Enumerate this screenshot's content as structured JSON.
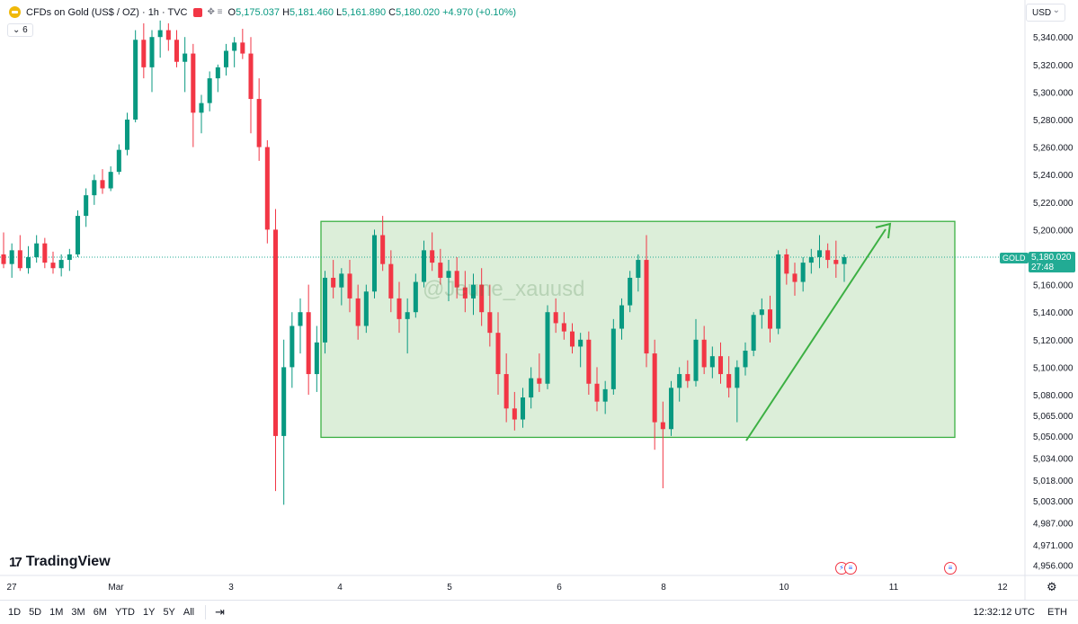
{
  "header": {
    "symbol": "CFDs on Gold (US$ / OZ) · 1h · TVC",
    "open_label": "O",
    "open": "5,175.037",
    "high_label": "H",
    "high": "5,181.460",
    "low_label": "L",
    "low": "5,161.890",
    "close_label": "C",
    "close": "5,180.020",
    "change": "+4.970 (+0.10%)",
    "indicator_count": "6"
  },
  "currency": "USD",
  "price_tag": {
    "symbol": "GOLD",
    "price": "5,180.020",
    "countdown": "27:48"
  },
  "watermark": "@Jeune_xauusd",
  "logo_text": "TradingView",
  "range_buttons": [
    "1D",
    "5D",
    "1M",
    "3M",
    "6M",
    "YTD",
    "1Y",
    "5Y",
    "All"
  ],
  "status": {
    "time": "12:32:12 UTC",
    "session": "ETH"
  },
  "colors": {
    "up": "#089981",
    "down": "#f23645",
    "zone_fill": "#d6ebd2",
    "zone_stroke": "#3cb043",
    "arrow": "#3cb043"
  },
  "chart_data": {
    "type": "candlestick",
    "symbol": "GOLD",
    "timeframe": "1h",
    "y_ticks": [
      5340,
      5320,
      5300,
      5280,
      5260,
      5240,
      5220,
      5200,
      5180,
      5160,
      5140,
      5120,
      5100,
      5080,
      5065,
      5050,
      5034,
      5018,
      5003,
      4987,
      4971,
      4956
    ],
    "y_tick_labels": [
      "5,340.000",
      "5,320.000",
      "5,300.000",
      "5,280.000",
      "5,260.000",
      "5,240.000",
      "5,220.000",
      "5,200.000",
      "5,180.000",
      "5,160.000",
      "5,140.000",
      "5,120.000",
      "5,100.000",
      "5,080.000",
      "5,065.000",
      "5,050.000",
      "5,034.000",
      "5,018.000",
      "5,003.000",
      "4,987.000",
      "4,971.000",
      "4,956.000"
    ],
    "x_ticks": [
      "27",
      "Mar",
      "3",
      "4",
      "5",
      "6",
      "8",
      "10",
      "11",
      "12"
    ],
    "current_price": 5180.02,
    "zone": {
      "top": 5206,
      "bottom": 5049,
      "label": ""
    },
    "candles": [
      {
        "o": 5182,
        "h": 5198,
        "l": 5172,
        "c": 5175
      },
      {
        "o": 5175,
        "h": 5190,
        "l": 5165,
        "c": 5185
      },
      {
        "o": 5185,
        "h": 5196,
        "l": 5170,
        "c": 5172
      },
      {
        "o": 5172,
        "h": 5188,
        "l": 5168,
        "c": 5180
      },
      {
        "o": 5180,
        "h": 5196,
        "l": 5176,
        "c": 5190
      },
      {
        "o": 5190,
        "h": 5194,
        "l": 5172,
        "c": 5176
      },
      {
        "o": 5176,
        "h": 5184,
        "l": 5168,
        "c": 5172
      },
      {
        "o": 5172,
        "h": 5182,
        "l": 5166,
        "c": 5178
      },
      {
        "o": 5178,
        "h": 5186,
        "l": 5170,
        "c": 5182
      },
      {
        "o": 5182,
        "h": 5214,
        "l": 5180,
        "c": 5210
      },
      {
        "o": 5210,
        "h": 5230,
        "l": 5202,
        "c": 5225
      },
      {
        "o": 5225,
        "h": 5240,
        "l": 5218,
        "c": 5236
      },
      {
        "o": 5236,
        "h": 5244,
        "l": 5226,
        "c": 5230
      },
      {
        "o": 5230,
        "h": 5246,
        "l": 5228,
        "c": 5242
      },
      {
        "o": 5242,
        "h": 5262,
        "l": 5240,
        "c": 5258
      },
      {
        "o": 5258,
        "h": 5285,
        "l": 5254,
        "c": 5280
      },
      {
        "o": 5280,
        "h": 5345,
        "l": 5278,
        "c": 5338
      },
      {
        "o": 5338,
        "h": 5350,
        "l": 5310,
        "c": 5318
      },
      {
        "o": 5318,
        "h": 5345,
        "l": 5300,
        "c": 5340
      },
      {
        "o": 5340,
        "h": 5352,
        "l": 5325,
        "c": 5345
      },
      {
        "o": 5345,
        "h": 5350,
        "l": 5330,
        "c": 5338
      },
      {
        "o": 5338,
        "h": 5345,
        "l": 5318,
        "c": 5322
      },
      {
        "o": 5322,
        "h": 5340,
        "l": 5300,
        "c": 5328
      },
      {
        "o": 5328,
        "h": 5335,
        "l": 5260,
        "c": 5285
      },
      {
        "o": 5285,
        "h": 5298,
        "l": 5270,
        "c": 5292
      },
      {
        "o": 5292,
        "h": 5315,
        "l": 5286,
        "c": 5310
      },
      {
        "o": 5310,
        "h": 5320,
        "l": 5300,
        "c": 5318
      },
      {
        "o": 5318,
        "h": 5335,
        "l": 5312,
        "c": 5330
      },
      {
        "o": 5330,
        "h": 5340,
        "l": 5318,
        "c": 5336
      },
      {
        "o": 5336,
        "h": 5346,
        "l": 5324,
        "c": 5328
      },
      {
        "o": 5328,
        "h": 5340,
        "l": 5270,
        "c": 5295
      },
      {
        "o": 5295,
        "h": 5310,
        "l": 5250,
        "c": 5260
      },
      {
        "o": 5260,
        "h": 5265,
        "l": 5190,
        "c": 5200
      },
      {
        "o": 5200,
        "h": 5215,
        "l": 5010,
        "c": 5050
      },
      {
        "o": 5050,
        "h": 5120,
        "l": 5000,
        "c": 5100
      },
      {
        "o": 5100,
        "h": 5140,
        "l": 5085,
        "c": 5130
      },
      {
        "o": 5130,
        "h": 5150,
        "l": 5110,
        "c": 5140
      },
      {
        "o": 5140,
        "h": 5160,
        "l": 5080,
        "c": 5095
      },
      {
        "o": 5095,
        "h": 5130,
        "l": 5082,
        "c": 5118
      },
      {
        "o": 5118,
        "h": 5170,
        "l": 5110,
        "c": 5165
      },
      {
        "o": 5165,
        "h": 5178,
        "l": 5150,
        "c": 5158
      },
      {
        "o": 5158,
        "h": 5172,
        "l": 5145,
        "c": 5168
      },
      {
        "o": 5168,
        "h": 5178,
        "l": 5140,
        "c": 5150
      },
      {
        "o": 5150,
        "h": 5160,
        "l": 5120,
        "c": 5130
      },
      {
        "o": 5130,
        "h": 5160,
        "l": 5125,
        "c": 5155
      },
      {
        "o": 5155,
        "h": 5200,
        "l": 5150,
        "c": 5196
      },
      {
        "o": 5196,
        "h": 5210,
        "l": 5170,
        "c": 5175
      },
      {
        "o": 5175,
        "h": 5185,
        "l": 5140,
        "c": 5150
      },
      {
        "o": 5150,
        "h": 5162,
        "l": 5125,
        "c": 5135
      },
      {
        "o": 5135,
        "h": 5150,
        "l": 5110,
        "c": 5140
      },
      {
        "o": 5140,
        "h": 5168,
        "l": 5136,
        "c": 5162
      },
      {
        "o": 5162,
        "h": 5192,
        "l": 5158,
        "c": 5185
      },
      {
        "o": 5185,
        "h": 5198,
        "l": 5170,
        "c": 5176
      },
      {
        "o": 5176,
        "h": 5186,
        "l": 5160,
        "c": 5165
      },
      {
        "o": 5165,
        "h": 5178,
        "l": 5148,
        "c": 5170
      },
      {
        "o": 5170,
        "h": 5180,
        "l": 5150,
        "c": 5158
      },
      {
        "o": 5158,
        "h": 5170,
        "l": 5140,
        "c": 5150
      },
      {
        "o": 5150,
        "h": 5168,
        "l": 5138,
        "c": 5160
      },
      {
        "o": 5160,
        "h": 5172,
        "l": 5130,
        "c": 5140
      },
      {
        "o": 5140,
        "h": 5160,
        "l": 5115,
        "c": 5125
      },
      {
        "o": 5125,
        "h": 5140,
        "l": 5080,
        "c": 5095
      },
      {
        "o": 5095,
        "h": 5110,
        "l": 5060,
        "c": 5070
      },
      {
        "o": 5070,
        "h": 5082,
        "l": 5054,
        "c": 5062
      },
      {
        "o": 5062,
        "h": 5085,
        "l": 5056,
        "c": 5078
      },
      {
        "o": 5078,
        "h": 5100,
        "l": 5070,
        "c": 5092
      },
      {
        "o": 5092,
        "h": 5110,
        "l": 5082,
        "c": 5088
      },
      {
        "o": 5088,
        "h": 5145,
        "l": 5084,
        "c": 5140
      },
      {
        "o": 5140,
        "h": 5150,
        "l": 5125,
        "c": 5132
      },
      {
        "o": 5132,
        "h": 5140,
        "l": 5120,
        "c": 5126
      },
      {
        "o": 5126,
        "h": 5132,
        "l": 5110,
        "c": 5115
      },
      {
        "o": 5115,
        "h": 5125,
        "l": 5100,
        "c": 5120
      },
      {
        "o": 5120,
        "h": 5126,
        "l": 5080,
        "c": 5088
      },
      {
        "o": 5088,
        "h": 5100,
        "l": 5068,
        "c": 5075
      },
      {
        "o": 5075,
        "h": 5090,
        "l": 5066,
        "c": 5084
      },
      {
        "o": 5084,
        "h": 5135,
        "l": 5080,
        "c": 5128
      },
      {
        "o": 5128,
        "h": 5150,
        "l": 5120,
        "c": 5145
      },
      {
        "o": 5145,
        "h": 5170,
        "l": 5140,
        "c": 5165
      },
      {
        "o": 5165,
        "h": 5182,
        "l": 5155,
        "c": 5178
      },
      {
        "o": 5178,
        "h": 5196,
        "l": 5100,
        "c": 5110
      },
      {
        "o": 5110,
        "h": 5120,
        "l": 5040,
        "c": 5060
      },
      {
        "o": 5060,
        "h": 5075,
        "l": 5012,
        "c": 5055
      },
      {
        "o": 5055,
        "h": 5090,
        "l": 5050,
        "c": 5085
      },
      {
        "o": 5085,
        "h": 5100,
        "l": 5075,
        "c": 5095
      },
      {
        "o": 5095,
        "h": 5105,
        "l": 5085,
        "c": 5090
      },
      {
        "o": 5090,
        "h": 5135,
        "l": 5086,
        "c": 5120
      },
      {
        "o": 5120,
        "h": 5130,
        "l": 5095,
        "c": 5100
      },
      {
        "o": 5100,
        "h": 5115,
        "l": 5092,
        "c": 5108
      },
      {
        "o": 5108,
        "h": 5118,
        "l": 5088,
        "c": 5095
      },
      {
        "o": 5095,
        "h": 5108,
        "l": 5078,
        "c": 5085
      },
      {
        "o": 5085,
        "h": 5105,
        "l": 5060,
        "c": 5100
      },
      {
        "o": 5100,
        "h": 5118,
        "l": 5094,
        "c": 5112
      },
      {
        "o": 5112,
        "h": 5140,
        "l": 5108,
        "c": 5138
      },
      {
        "o": 5138,
        "h": 5150,
        "l": 5128,
        "c": 5142
      },
      {
        "o": 5142,
        "h": 5152,
        "l": 5118,
        "c": 5128
      },
      {
        "o": 5128,
        "h": 5185,
        "l": 5124,
        "c": 5182
      },
      {
        "o": 5182,
        "h": 5186,
        "l": 5160,
        "c": 5168
      },
      {
        "o": 5168,
        "h": 5176,
        "l": 5152,
        "c": 5162
      },
      {
        "o": 5162,
        "h": 5180,
        "l": 5155,
        "c": 5176
      },
      {
        "o": 5176,
        "h": 5186,
        "l": 5168,
        "c": 5180
      },
      {
        "o": 5180,
        "h": 5196,
        "l": 5172,
        "c": 5185
      },
      {
        "o": 5185,
        "h": 5190,
        "l": 5172,
        "c": 5178
      },
      {
        "o": 5178,
        "h": 5192,
        "l": 5165,
        "c": 5175
      },
      {
        "o": 5175,
        "h": 5182,
        "l": 5162,
        "c": 5180
      }
    ]
  }
}
